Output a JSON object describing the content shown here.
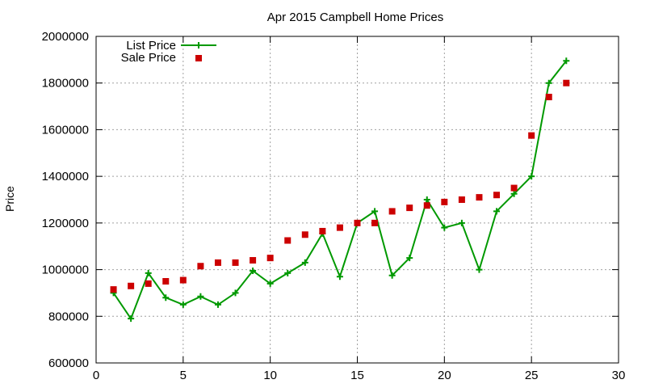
{
  "chart_data": {
    "type": "line",
    "title": "Apr 2015 Campbell Home Prices",
    "xlabel": "",
    "ylabel": "Price",
    "xlim": [
      0,
      30
    ],
    "ylim": [
      600000,
      2000000
    ],
    "xticks": [
      0,
      5,
      10,
      15,
      20,
      25,
      30
    ],
    "yticks": [
      600000,
      800000,
      1000000,
      1200000,
      1400000,
      1600000,
      1800000,
      2000000
    ],
    "grid": true,
    "legend_position": "top-left",
    "series": [
      {
        "name": "List Price",
        "style": "line-with-plus-markers",
        "color": "#009900",
        "x": [
          1,
          2,
          3,
          4,
          5,
          6,
          7,
          8,
          9,
          10,
          11,
          12,
          13,
          14,
          15,
          16,
          17,
          18,
          19,
          20,
          21,
          22,
          23,
          24,
          25,
          26,
          27
        ],
        "y": [
          900000,
          790000,
          985000,
          880000,
          850000,
          885000,
          850000,
          900000,
          995000,
          940000,
          985000,
          1030000,
          1155000,
          970000,
          1200000,
          1250000,
          975000,
          1050000,
          1300000,
          1180000,
          1200000,
          1000000,
          1250000,
          1325000,
          1400000,
          1800000,
          1895000
        ]
      },
      {
        "name": "Sale Price",
        "style": "square-markers",
        "color": "#cc0000",
        "x": [
          1,
          2,
          3,
          4,
          5,
          6,
          7,
          8,
          9,
          10,
          11,
          12,
          13,
          14,
          15,
          16,
          17,
          18,
          19,
          20,
          21,
          22,
          23,
          24,
          25,
          26,
          27
        ],
        "y": [
          915000,
          930000,
          940000,
          950000,
          955000,
          1015000,
          1030000,
          1030000,
          1040000,
          1050000,
          1125000,
          1150000,
          1165000,
          1180000,
          1200000,
          1200000,
          1250000,
          1265000,
          1275000,
          1290000,
          1300000,
          1310000,
          1320000,
          1350000,
          1575000,
          1740000,
          1800000
        ]
      }
    ]
  }
}
